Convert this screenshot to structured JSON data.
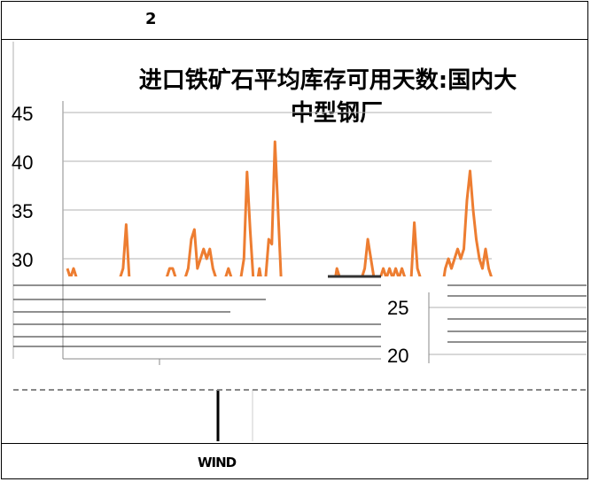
{
  "header": {
    "text": "2"
  },
  "footer": {
    "source": "WIND"
  },
  "chart_data": {
    "type": "line",
    "title": "进口铁矿石平均库存可用天数:国内大中型钢厂",
    "title_lines": [
      "进口铁矿石平均库存可用天数:国内大",
      "中型钢厂"
    ],
    "yticks": [
      45,
      40,
      35,
      30
    ],
    "yticks_lower": [
      25,
      20
    ],
    "ylim": [
      20,
      45
    ],
    "grid": true,
    "colors": {
      "line": "#ED7D31",
      "grid": "#b0b0b0",
      "border": "#000000"
    },
    "series": [
      {
        "values": [
          29,
          28,
          29,
          28,
          27,
          27,
          28,
          27,
          28,
          27,
          28,
          28,
          27,
          28,
          28,
          28,
          27,
          28,
          29,
          33.5,
          28,
          27,
          27,
          28,
          27,
          28,
          27,
          28,
          28,
          27,
          28,
          27,
          28,
          29,
          29,
          28,
          27,
          28,
          28,
          29,
          32,
          33,
          29,
          30,
          31,
          30,
          31,
          29,
          28,
          28,
          27,
          28,
          29,
          28,
          27,
          28,
          28,
          30,
          38.9,
          33,
          28,
          27,
          29,
          27,
          28,
          32,
          31.5,
          42,
          35,
          28,
          27,
          28,
          27,
          28,
          28,
          27,
          28,
          27,
          28,
          28,
          27,
          28,
          27,
          28,
          28,
          28,
          27,
          29,
          28,
          27,
          28,
          27,
          28,
          28,
          27,
          28,
          29,
          32,
          30,
          28,
          27,
          28,
          29,
          28,
          29,
          28,
          29,
          28,
          29,
          28,
          27,
          28,
          33.7,
          29,
          28,
          27,
          28,
          27,
          28,
          27,
          28,
          27,
          29,
          30,
          29,
          30,
          31,
          30,
          31,
          36,
          39,
          35,
          32,
          30,
          29,
          31,
          29,
          28
        ]
      }
    ]
  }
}
